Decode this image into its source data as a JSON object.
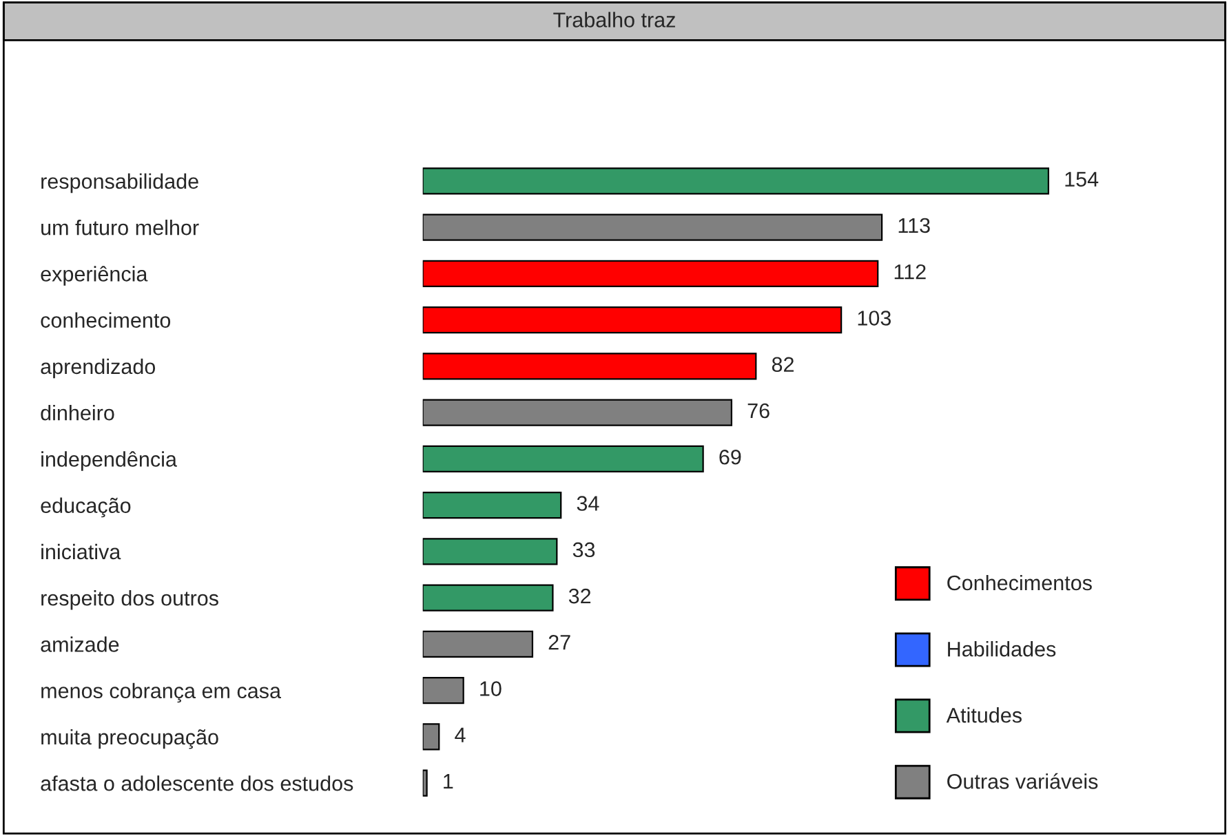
{
  "chart_data": {
    "type": "bar",
    "orientation": "horizontal",
    "title": "Trabalho traz",
    "categories": [
      "responsabilidade",
      "um futuro melhor",
      "experiência",
      "conhecimento",
      "aprendizado",
      "dinheiro",
      "independência",
      "educação",
      "iniciativa",
      "respeito dos outros",
      "amizade",
      "menos cobrança em casa",
      "muita preocupação",
      "afasta o adolescente dos estudos"
    ],
    "series": [
      {
        "name": "Conhecimentos",
        "color": "#ff0000",
        "values": [
          null,
          null,
          112,
          103,
          82,
          null,
          null,
          null,
          null,
          null,
          null,
          null,
          null,
          null
        ]
      },
      {
        "name": "Habilidades",
        "color": "#3366ff",
        "values": [
          null,
          null,
          null,
          null,
          null,
          null,
          null,
          null,
          null,
          null,
          null,
          null,
          null,
          null
        ]
      },
      {
        "name": "Atitudes",
        "color": "#339966",
        "values": [
          154,
          null,
          null,
          null,
          null,
          null,
          69,
          34,
          33,
          32,
          null,
          null,
          null,
          null
        ]
      },
      {
        "name": "Outras variáveis",
        "color": "#808080",
        "values": [
          null,
          113,
          null,
          null,
          null,
          76,
          null,
          null,
          null,
          null,
          27,
          10,
          4,
          1
        ]
      }
    ],
    "data_labels": true,
    "legend": "bottom right",
    "grid": false,
    "tick_labels": "y"
  }
}
